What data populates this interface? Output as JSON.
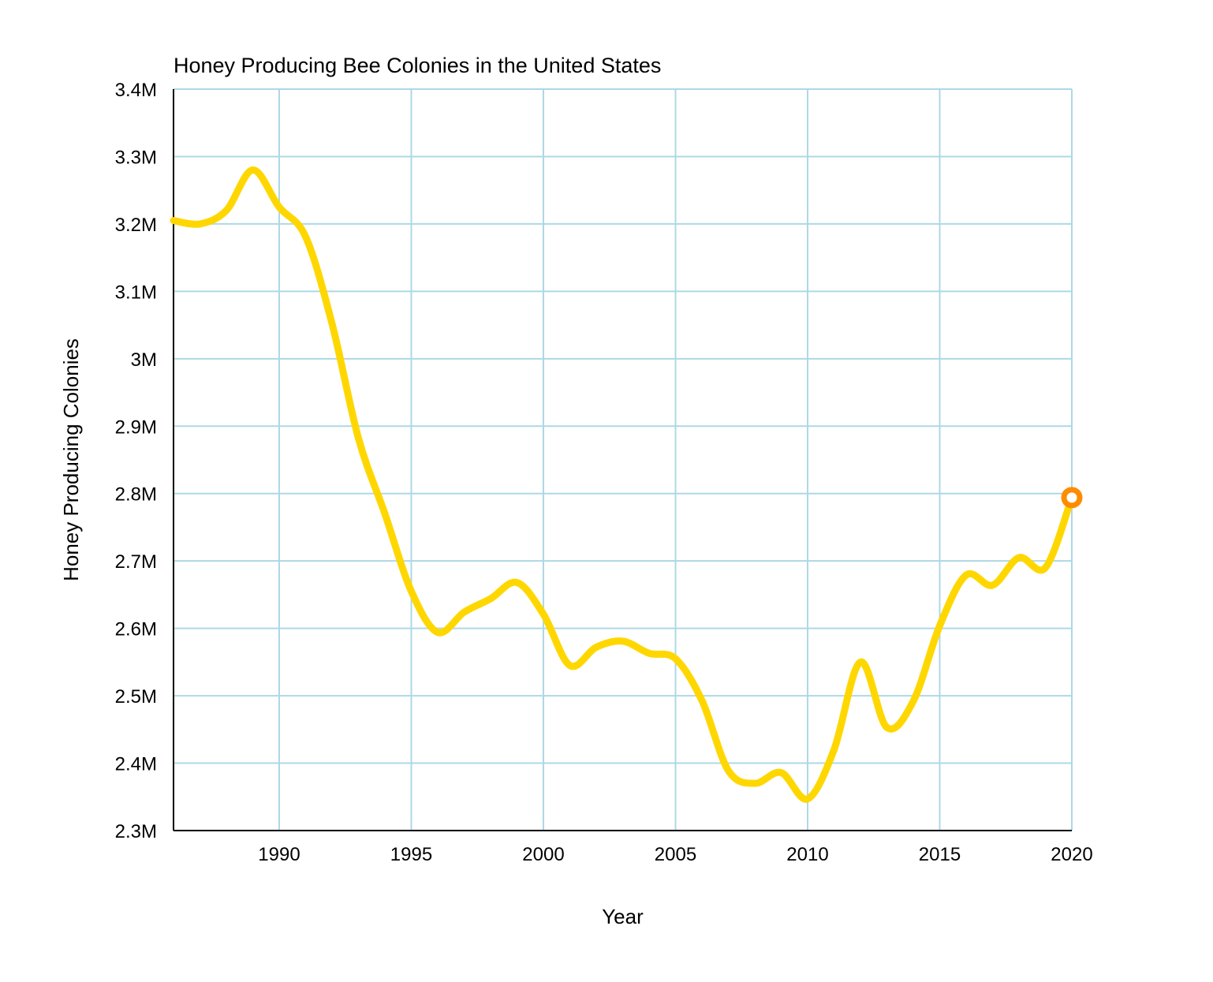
{
  "chart_data": {
    "type": "line",
    "title": "Honey Producing Bee Colonies in the United States",
    "xlabel": "Year",
    "ylabel": "Honey Producing Colonies",
    "xlim": [
      1986,
      2020
    ],
    "ylim": [
      2300000,
      3400000
    ],
    "x_ticks": [
      1990,
      1995,
      2000,
      2005,
      2010,
      2015,
      2020
    ],
    "x_tick_labels": [
      "1990",
      "1995",
      "2000",
      "2005",
      "2010",
      "2015",
      "2020"
    ],
    "y_ticks": [
      2300000,
      2400000,
      2500000,
      2600000,
      2700000,
      2800000,
      2900000,
      3000000,
      3100000,
      3200000,
      3300000,
      3400000
    ],
    "y_tick_labels": [
      "2.3M",
      "2.4M",
      "2.5M",
      "2.6M",
      "2.7M",
      "2.8M",
      "2.9M",
      "3M",
      "3.1M",
      "3.2M",
      "3.3M",
      "3.4M"
    ],
    "grid": true,
    "series": [
      {
        "color": "#FFD700",
        "x": [
          1986,
          1987,
          1988,
          1989,
          1990,
          1991,
          1992,
          1993,
          1994,
          1995,
          1996,
          1997,
          1998,
          1999,
          2000,
          2001,
          2002,
          2003,
          2004,
          2005,
          2006,
          2007,
          2008,
          2009,
          2010,
          2011,
          2012,
          2013,
          2014,
          2015,
          2016,
          2017,
          2018,
          2019,
          2020
        ],
        "values": [
          3205000,
          3200000,
          3220000,
          3280000,
          3225000,
          3181000,
          3052000,
          2882000,
          2770000,
          2655000,
          2594000,
          2624000,
          2644000,
          2668000,
          2621000,
          2545000,
          2572000,
          2581000,
          2563000,
          2555000,
          2493000,
          2389000,
          2370000,
          2386000,
          2347000,
          2420000,
          2550000,
          2453000,
          2492000,
          2604000,
          2679000,
          2664000,
          2705000,
          2690000,
          2794000
        ]
      }
    ],
    "highlight_last_point": {
      "x": 2020,
      "value": 2794000,
      "color": "#FF8C00"
    },
    "grid_color": "#ADD8E6"
  }
}
